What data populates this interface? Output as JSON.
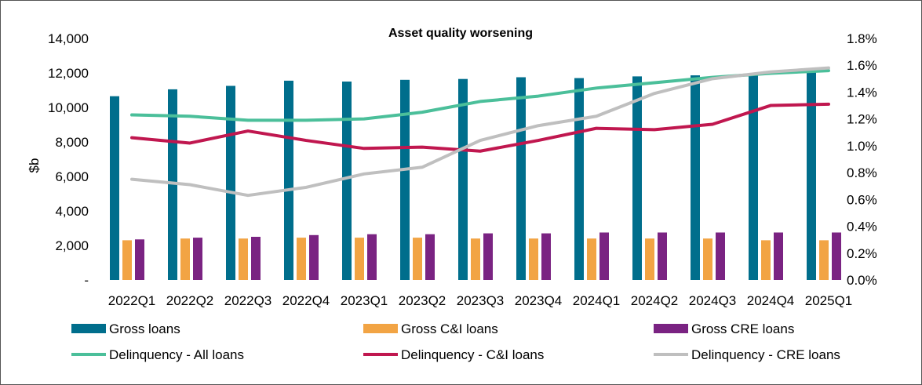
{
  "chart_data": {
    "type": "bar+line",
    "title": "Asset quality worsening",
    "ylabel": "$b",
    "ylim": [
      0,
      14000
    ],
    "y2lim": [
      0,
      1.8
    ],
    "yticks": [
      "-",
      "2,000",
      "4,000",
      "6,000",
      "8,000",
      "10,000",
      "12,000",
      "14,000"
    ],
    "y2ticks": [
      "0.0%",
      "0.2%",
      "0.4%",
      "0.6%",
      "0.8%",
      "1.0%",
      "1.2%",
      "1.4%",
      "1.6%",
      "1.8%"
    ],
    "categories": [
      "2022Q1",
      "2022Q2",
      "2022Q3",
      "2022Q4",
      "2023Q1",
      "2023Q2",
      "2023Q3",
      "2023Q4",
      "2024Q1",
      "2024Q2",
      "2024Q3",
      "2024Q4",
      "2025Q1"
    ],
    "legend_position": "bottom",
    "bar_series": [
      {
        "name": "Gross loans",
        "color": "#006E8C",
        "values": [
          10650,
          11050,
          11250,
          11550,
          11500,
          11600,
          11650,
          11750,
          11700,
          11800,
          11860,
          11950,
          12100
        ]
      },
      {
        "name": "Gross C&I loans",
        "color": "#F2A444",
        "values": [
          2300,
          2400,
          2400,
          2450,
          2450,
          2450,
          2400,
          2400,
          2400,
          2400,
          2400,
          2300,
          2300
        ]
      },
      {
        "name": "Gross CRE loans",
        "color": "#7A2382",
        "values": [
          2350,
          2450,
          2500,
          2600,
          2650,
          2650,
          2700,
          2700,
          2750,
          2750,
          2750,
          2750,
          2750
        ]
      }
    ],
    "line_series": [
      {
        "name": "Delinquency - All loans",
        "color": "#4BBF9A",
        "values": [
          1.23,
          1.22,
          1.19,
          1.19,
          1.2,
          1.25,
          1.33,
          1.37,
          1.43,
          1.47,
          1.51,
          1.54,
          1.56
        ]
      },
      {
        "name": "Delinquency - C&I loans",
        "color": "#C0174F",
        "values": [
          1.06,
          1.02,
          1.11,
          1.04,
          0.98,
          0.99,
          0.96,
          1.04,
          1.13,
          1.12,
          1.16,
          1.3,
          1.31
        ]
      },
      {
        "name": "Delinquency - CRE loans",
        "color": "#BFBFBF",
        "values": [
          0.75,
          0.71,
          0.63,
          0.69,
          0.79,
          0.84,
          1.04,
          1.15,
          1.22,
          1.39,
          1.5,
          1.55,
          1.58
        ]
      }
    ]
  }
}
